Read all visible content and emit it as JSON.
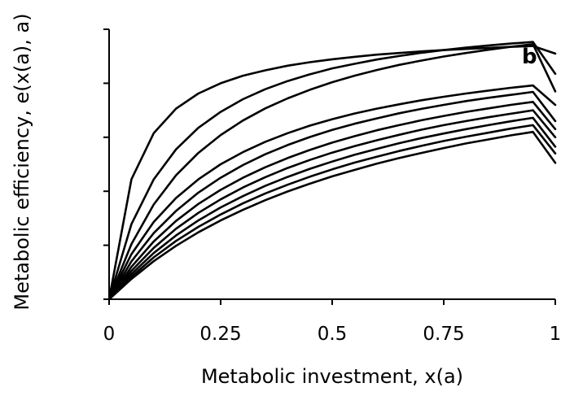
{
  "chart_data": {
    "type": "line",
    "xlabel": "Metabolic investment, x(a)",
    "ylabel": "Metabolic efficiency, e(x(a), a)",
    "xlim": [
      0,
      1
    ],
    "ylim": [
      0,
      1
    ],
    "x_ticks": [
      "0",
      "0.25",
      "0.5",
      "0.75",
      "1"
    ],
    "y_tick_values": [
      0,
      0.2,
      0.4,
      0.6,
      0.8,
      1
    ],
    "grid": false,
    "annotation": "b",
    "x": [
      0,
      0.05,
      0.1,
      0.15,
      0.2,
      0.25,
      0.3,
      0.35,
      0.4,
      0.45,
      0.5,
      0.55,
      0.6,
      0.65,
      0.7,
      0.75,
      0.8,
      0.85,
      0.9,
      0.95,
      1
    ],
    "series": [
      {
        "values": [
          0,
          0.444,
          0.615,
          0.706,
          0.762,
          0.8,
          0.828,
          0.848,
          0.865,
          0.878,
          0.889,
          0.898,
          0.906,
          0.912,
          0.918,
          0.923,
          0.927,
          0.931,
          0.935,
          0.938,
          0.91
        ]
      },
      {
        "values": [
          0,
          0.278,
          0.444,
          0.555,
          0.635,
          0.694,
          0.741,
          0.778,
          0.808,
          0.833,
          0.855,
          0.872,
          0.888,
          0.901,
          0.913,
          0.923,
          0.932,
          0.94,
          0.947,
          0.953,
          0.835
        ]
      },
      {
        "values": [
          0,
          0.204,
          0.351,
          0.459,
          0.542,
          0.608,
          0.662,
          0.707,
          0.744,
          0.776,
          0.804,
          0.828,
          0.849,
          0.868,
          0.884,
          0.899,
          0.912,
          0.924,
          0.935,
          0.945,
          0.77
        ]
      },
      {
        "values": [
          0,
          0.167,
          0.286,
          0.375,
          0.444,
          0.5,
          0.545,
          0.583,
          0.615,
          0.643,
          0.667,
          0.688,
          0.706,
          0.722,
          0.737,
          0.75,
          0.762,
          0.773,
          0.783,
          0.792,
          0.72
        ]
      },
      {
        "values": [
          0,
          0.14,
          0.245,
          0.327,
          0.395,
          0.45,
          0.497,
          0.537,
          0.571,
          0.601,
          0.627,
          0.65,
          0.67,
          0.689,
          0.705,
          0.72,
          0.734,
          0.746,
          0.757,
          0.768,
          0.66
        ]
      },
      {
        "values": [
          0,
          0.12,
          0.214,
          0.29,
          0.353,
          0.405,
          0.45,
          0.489,
          0.523,
          0.553,
          0.58,
          0.604,
          0.626,
          0.645,
          0.663,
          0.679,
          0.694,
          0.707,
          0.72,
          0.731,
          0.63
        ]
      },
      {
        "values": [
          0,
          0.105,
          0.19,
          0.261,
          0.32,
          0.37,
          0.414,
          0.452,
          0.486,
          0.516,
          0.543,
          0.567,
          0.589,
          0.609,
          0.628,
          0.645,
          0.66,
          0.674,
          0.687,
          0.7,
          0.6
        ]
      },
      {
        "values": [
          0,
          0.093,
          0.171,
          0.236,
          0.292,
          0.34,
          0.382,
          0.42,
          0.453,
          0.483,
          0.51,
          0.535,
          0.557,
          0.578,
          0.597,
          0.614,
          0.63,
          0.645,
          0.659,
          0.672,
          0.565
        ]
      },
      {
        "values": [
          0,
          0.083,
          0.155,
          0.216,
          0.268,
          0.314,
          0.355,
          0.392,
          0.424,
          0.454,
          0.481,
          0.506,
          0.528,
          0.549,
          0.568,
          0.586,
          0.602,
          0.617,
          0.632,
          0.645,
          0.54
        ]
      },
      {
        "values": [
          0,
          0.075,
          0.141,
          0.198,
          0.248,
          0.292,
          0.331,
          0.367,
          0.399,
          0.428,
          0.455,
          0.479,
          0.502,
          0.523,
          0.542,
          0.56,
          0.577,
          0.592,
          0.607,
          0.62,
          0.505
        ]
      }
    ]
  }
}
